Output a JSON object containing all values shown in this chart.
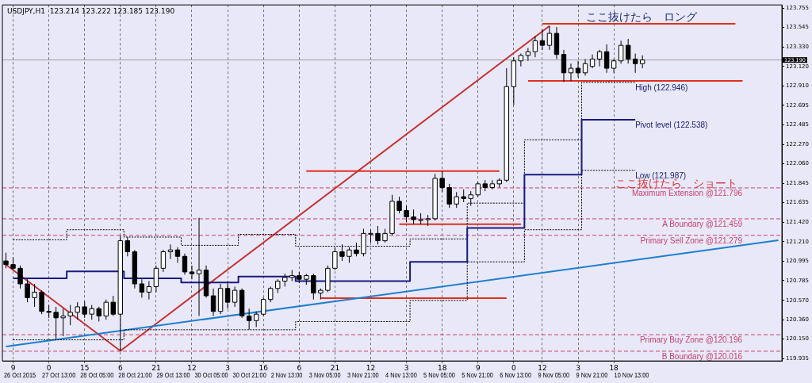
{
  "chart_data": {
    "type": "candlestick",
    "title": "USDJPY,H1  123.214 123.222 123.185 123.190",
    "categories": [
      null,
      "9",
      null,
      null,
      null,
      null,
      "0",
      null,
      null,
      null,
      null,
      "15",
      null,
      null,
      null,
      null,
      "6",
      null,
      null,
      null,
      null,
      "21",
      null,
      null,
      null,
      null,
      "12",
      null,
      null,
      null,
      null,
      "3",
      null,
      null,
      null,
      null,
      "16",
      null,
      null,
      null,
      null,
      "6",
      null,
      null,
      null,
      null,
      "21",
      null,
      null,
      null,
      null,
      "12",
      null,
      null,
      null,
      null,
      "3",
      null,
      null,
      null,
      null,
      "18",
      null,
      null,
      null,
      null,
      "9",
      null,
      null,
      null,
      null,
      "0",
      null,
      null,
      null,
      "12",
      null,
      null,
      null,
      null,
      "3",
      null,
      null,
      null,
      null,
      "18",
      null,
      null,
      null,
      null,
      null,
      null,
      null,
      null,
      null,
      null,
      null,
      null,
      null,
      null,
      null,
      null,
      null,
      null,
      null,
      null,
      null,
      null,
      null
    ],
    "ohlc": [
      [
        121.0,
        121.09,
        120.92,
        120.96
      ],
      [
        120.96,
        121.04,
        120.9,
        120.92
      ],
      [
        120.92,
        120.95,
        120.7,
        120.75
      ],
      [
        120.75,
        120.8,
        120.55,
        120.6
      ],
      [
        120.6,
        120.75,
        120.5,
        120.66
      ],
      [
        120.66,
        120.68,
        120.42,
        120.45
      ],
      [
        120.45,
        120.52,
        120.38,
        120.44
      ],
      [
        120.44,
        120.5,
        120.15,
        120.38
      ],
      [
        120.38,
        120.48,
        120.18,
        120.4
      ],
      [
        120.4,
        120.52,
        120.3,
        120.44
      ],
      [
        120.44,
        120.55,
        120.36,
        120.5
      ],
      [
        120.5,
        120.56,
        120.38,
        120.42
      ],
      [
        120.42,
        120.52,
        120.36,
        120.48
      ],
      [
        120.48,
        120.5,
        120.34,
        120.4
      ],
      [
        120.4,
        120.58,
        120.36,
        120.55
      ],
      [
        120.55,
        120.62,
        120.4,
        120.42
      ],
      [
        120.42,
        121.28,
        120.02,
        121.22
      ],
      [
        121.22,
        121.26,
        121.05,
        121.1
      ],
      [
        121.1,
        121.12,
        120.7,
        120.75
      ],
      [
        120.75,
        120.8,
        120.6,
        120.66
      ],
      [
        120.66,
        120.78,
        120.58,
        120.72
      ],
      [
        120.72,
        120.95,
        120.66,
        120.92
      ],
      [
        120.92,
        121.12,
        120.88,
        121.1
      ],
      [
        121.1,
        121.18,
        121.02,
        121.12
      ],
      [
        121.12,
        121.15,
        120.98,
        121.05
      ],
      [
        121.05,
        121.08,
        120.85,
        120.88
      ],
      [
        120.88,
        120.95,
        120.8,
        120.86
      ],
      [
        120.86,
        121.47,
        120.4,
        120.9
      ],
      [
        120.9,
        120.95,
        120.6,
        120.62
      ],
      [
        120.62,
        120.7,
        120.4,
        120.45
      ],
      [
        120.45,
        120.75,
        120.42,
        120.7
      ],
      [
        120.7,
        120.78,
        120.48,
        120.55
      ],
      [
        120.55,
        120.72,
        120.5,
        120.68
      ],
      [
        120.68,
        120.7,
        120.38,
        120.4
      ],
      [
        120.4,
        120.48,
        120.25,
        120.35
      ],
      [
        120.35,
        120.45,
        120.28,
        120.42
      ],
      [
        120.42,
        120.6,
        120.4,
        120.58
      ],
      [
        120.58,
        120.72,
        120.55,
        120.7
      ],
      [
        120.7,
        120.8,
        120.65,
        120.78
      ],
      [
        120.78,
        120.86,
        120.72,
        120.82
      ],
      [
        120.82,
        120.9,
        120.78,
        120.84
      ],
      [
        120.84,
        120.88,
        120.76,
        120.8
      ],
      [
        120.8,
        120.86,
        120.74,
        120.84
      ],
      [
        120.84,
        120.86,
        120.58,
        120.65
      ],
      [
        120.65,
        120.7,
        120.58,
        120.68
      ],
      [
        120.68,
        120.95,
        120.66,
        120.92
      ],
      [
        120.92,
        121.15,
        120.9,
        121.1
      ],
      [
        121.1,
        121.18,
        121.0,
        121.05
      ],
      [
        121.05,
        121.15,
        120.98,
        121.12
      ],
      [
        121.12,
        121.2,
        121.05,
        121.08
      ],
      [
        121.08,
        121.35,
        121.05,
        121.3
      ],
      [
        121.3,
        121.34,
        121.2,
        121.3
      ],
      [
        121.3,
        121.38,
        121.18,
        121.22
      ],
      [
        121.22,
        121.35,
        121.2,
        121.3
      ],
      [
        121.3,
        121.72,
        121.28,
        121.65
      ],
      [
        121.65,
        121.7,
        121.52,
        121.55
      ],
      [
        121.55,
        121.6,
        121.42,
        121.48
      ],
      [
        121.48,
        121.56,
        121.4,
        121.45
      ],
      [
        121.45,
        121.52,
        121.4,
        121.45
      ],
      [
        121.45,
        121.5,
        121.38,
        121.46
      ],
      [
        121.46,
        121.95,
        121.44,
        121.9
      ],
      [
        121.9,
        121.98,
        121.75,
        121.8
      ],
      [
        121.8,
        121.84,
        121.58,
        121.62
      ],
      [
        121.62,
        121.75,
        121.58,
        121.7
      ],
      [
        121.7,
        121.78,
        121.64,
        121.68
      ],
      [
        121.68,
        121.76,
        121.6,
        121.72
      ],
      [
        121.72,
        121.86,
        121.7,
        121.84
      ],
      [
        121.84,
        121.88,
        121.76,
        121.8
      ],
      [
        121.8,
        121.88,
        121.78,
        121.84
      ],
      [
        121.84,
        121.9,
        121.8,
        121.88
      ],
      [
        121.88,
        123.1,
        121.86,
        122.9
      ],
      [
        122.9,
        123.22,
        122.7,
        123.18
      ],
      [
        123.18,
        123.26,
        123.12,
        123.24
      ],
      [
        123.24,
        123.32,
        123.18,
        123.28
      ],
      [
        123.28,
        123.45,
        123.22,
        123.4
      ],
      [
        123.4,
        123.52,
        123.3,
        123.35
      ],
      [
        123.35,
        123.56,
        123.3,
        123.48
      ],
      [
        123.48,
        123.55,
        123.2,
        123.25
      ],
      [
        123.25,
        123.3,
        122.95,
        123.05
      ],
      [
        123.05,
        123.15,
        122.96,
        123.1
      ],
      [
        123.1,
        123.18,
        123.0,
        123.05
      ],
      [
        123.05,
        123.2,
        123.02,
        123.15
      ],
      [
        123.12,
        123.25,
        123.1,
        123.2
      ],
      [
        123.2,
        123.3,
        123.12,
        123.28
      ],
      [
        123.28,
        123.36,
        123.05,
        123.1
      ],
      [
        123.1,
        123.2,
        123.05,
        123.18
      ],
      [
        123.18,
        123.4,
        123.15,
        123.35
      ],
      [
        123.35,
        123.42,
        123.15,
        123.2
      ],
      [
        123.2,
        123.26,
        123.05,
        123.15
      ],
      [
        123.15,
        123.24,
        123.1,
        123.19
      ],
      null,
      null,
      null,
      null,
      null,
      null,
      null,
      null,
      null,
      null,
      null,
      null,
      null,
      null,
      null,
      null,
      null,
      null,
      null
    ],
    "series": [
      {
        "type": "step",
        "name": "Pivot level (122.538)",
        "color": "#1a1a80",
        "line_style": "solid",
        "values": [
          null,
          120.81,
          120.81,
          120.81,
          120.81,
          120.81,
          120.81,
          120.81,
          120.81,
          120.885,
          120.885,
          120.885,
          120.885,
          120.885,
          120.885,
          120.885,
          120.885,
          120.81,
          120.81,
          120.81,
          120.81,
          120.81,
          120.81,
          120.81,
          120.81,
          120.765,
          120.765,
          120.765,
          120.765,
          120.765,
          120.765,
          120.765,
          120.765,
          120.83,
          120.83,
          120.83,
          120.83,
          120.83,
          120.83,
          120.83,
          120.83,
          120.78,
          120.78,
          120.78,
          120.78,
          120.78,
          120.78,
          120.78,
          120.78,
          120.78,
          120.78,
          120.78,
          120.78,
          120.78,
          120.78,
          120.78,
          120.78,
          120.99,
          120.99,
          120.99,
          120.99,
          120.99,
          120.99,
          120.99,
          120.99,
          121.36,
          121.36,
          121.36,
          121.36,
          121.36,
          121.36,
          121.36,
          121.36,
          121.94,
          121.94,
          121.94,
          121.94,
          121.94,
          121.94,
          121.94,
          121.94,
          122.538,
          122.538,
          122.538,
          122.538,
          122.538,
          122.538,
          122.538,
          122.538,
          null,
          null,
          null,
          null,
          null,
          null,
          null,
          null,
          null,
          null,
          null,
          null,
          null,
          null,
          null,
          null,
          null,
          null,
          null,
          null
        ]
      },
      {
        "type": "step",
        "name": "High (122.946)",
        "color": "#000000",
        "line_style": "dotted",
        "values": [
          null,
          121.23,
          121.23,
          121.23,
          121.23,
          121.23,
          121.23,
          121.23,
          121.23,
          121.34,
          121.34,
          121.34,
          121.34,
          121.34,
          121.34,
          121.34,
          121.34,
          121.26,
          121.26,
          121.26,
          121.26,
          121.26,
          121.26,
          121.26,
          121.26,
          121.17,
          121.17,
          121.17,
          121.17,
          121.17,
          121.17,
          121.17,
          121.17,
          121.29,
          121.29,
          121.29,
          121.29,
          121.29,
          121.29,
          121.29,
          121.29,
          121.16,
          121.16,
          121.16,
          121.16,
          121.16,
          121.16,
          121.16,
          121.16,
          121.16,
          121.16,
          121.16,
          121.16,
          121.16,
          121.16,
          121.16,
          121.16,
          121.24,
          121.24,
          121.24,
          121.24,
          121.24,
          121.24,
          121.24,
          121.24,
          121.63,
          121.63,
          121.63,
          121.63,
          121.63,
          121.63,
          121.63,
          121.63,
          122.32,
          122.32,
          122.32,
          122.32,
          122.32,
          122.32,
          122.32,
          122.32,
          122.946,
          122.946,
          122.946,
          122.946,
          122.946,
          122.946,
          122.946,
          122.946,
          null,
          null,
          null,
          null,
          null,
          null,
          null,
          null,
          null,
          null,
          null,
          null,
          null,
          null,
          null,
          null,
          null,
          null,
          null,
          null
        ]
      },
      {
        "type": "step",
        "name": "Low (121.987)",
        "color": "#000000",
        "line_style": "dotted",
        "values": [
          null,
          120.14,
          120.14,
          120.14,
          120.14,
          120.14,
          120.14,
          120.14,
          120.14,
          120.14,
          120.14,
          120.14,
          120.14,
          120.14,
          120.14,
          120.14,
          120.14,
          120.25,
          120.25,
          120.25,
          120.25,
          120.25,
          120.25,
          120.25,
          120.25,
          120.25,
          120.25,
          120.25,
          120.25,
          120.25,
          120.25,
          120.25,
          120.25,
          120.25,
          120.25,
          120.25,
          120.25,
          120.25,
          120.25,
          120.25,
          120.25,
          120.34,
          120.34,
          120.34,
          120.34,
          120.34,
          120.34,
          120.34,
          120.34,
          120.34,
          120.34,
          120.34,
          120.34,
          120.34,
          120.34,
          120.34,
          120.34,
          120.57,
          120.57,
          120.57,
          120.57,
          120.57,
          120.57,
          120.57,
          120.57,
          120.99,
          120.99,
          120.99,
          120.99,
          120.99,
          120.99,
          120.99,
          120.99,
          121.34,
          121.34,
          121.34,
          121.34,
          121.34,
          121.34,
          121.34,
          121.34,
          121.987,
          121.987,
          121.987,
          121.987,
          121.987,
          121.987,
          121.987,
          121.987,
          null,
          null,
          null,
          null,
          null,
          null,
          null,
          null,
          null,
          null,
          null,
          null,
          null,
          null,
          null,
          null,
          null,
          null,
          null,
          null
        ]
      },
      {
        "type": "line",
        "color": "#1e7fd0",
        "line_style": "solid",
        "values": [
          120.067,
          null,
          null,
          null,
          null,
          null,
          null,
          null,
          null,
          null,
          null,
          null,
          null,
          null,
          null,
          null,
          null,
          null,
          null,
          null,
          null,
          null,
          null,
          null,
          null,
          null,
          null,
          null,
          null,
          null,
          null,
          null,
          null,
          null,
          null,
          null,
          null,
          null,
          null,
          null,
          null,
          null,
          null,
          null,
          null,
          null,
          null,
          null,
          null,
          null,
          null,
          null,
          null,
          null,
          null,
          null,
          null,
          null,
          null,
          null,
          null,
          null,
          null,
          null,
          null,
          null,
          null,
          null,
          null,
          null,
          null,
          null,
          null,
          null,
          null,
          null,
          null,
          null,
          null,
          null,
          null,
          null,
          null,
          null,
          null,
          null,
          null,
          null,
          null,
          null,
          null,
          null,
          null,
          null,
          null,
          null,
          null,
          null,
          null,
          null,
          null,
          null,
          null,
          null,
          null,
          null,
          null,
          null,
          121.225
        ]
      },
      {
        "type": "line",
        "color": "#c83030",
        "line_style": "solid",
        "values": [
          120.96,
          null,
          null,
          null,
          null,
          null,
          null,
          null,
          null,
          null,
          null,
          null,
          null,
          null,
          null,
          null,
          120.02,
          null,
          null,
          null,
          null,
          null,
          null,
          null,
          null,
          null,
          null,
          null,
          null,
          null,
          null,
          null,
          null,
          null,
          null,
          null,
          null,
          null,
          null,
          null,
          null,
          null,
          null,
          null,
          null,
          null,
          null,
          null,
          null,
          null,
          null,
          null,
          null,
          null,
          null,
          null,
          null,
          null,
          null,
          null,
          null,
          null,
          null,
          null,
          null,
          null,
          null,
          null,
          null,
          null,
          null,
          null,
          null,
          null,
          null,
          null,
          123.56,
          null,
          null,
          null,
          null,
          null,
          null,
          null,
          null,
          null,
          null,
          null,
          null,
          null,
          null,
          null,
          null,
          null,
          null,
          null,
          null,
          null,
          null,
          null,
          null,
          null,
          null,
          null,
          null,
          null,
          null,
          null,
          null
        ]
      },
      {
        "type": "line",
        "color": "#e03020",
        "line_style": "solid",
        "values": [
          null,
          null,
          null,
          null,
          null,
          null,
          null,
          null,
          null,
          null,
          null,
          null,
          null,
          null,
          null,
          null,
          null,
          null,
          null,
          null,
          null,
          null,
          null,
          null,
          null,
          null,
          null,
          null,
          null,
          null,
          null,
          null,
          null,
          null,
          null,
          null,
          null,
          null,
          null,
          null,
          null,
          null,
          null,
          null,
          null,
          null,
          null,
          null,
          null,
          null,
          null,
          null,
          null,
          null,
          null,
          null,
          null,
          null,
          null,
          null,
          null,
          null,
          null,
          null,
          null,
          null,
          null,
          null,
          null,
          null,
          null,
          null,
          null,
          null,
          null,
          123.585,
          null,
          null,
          null,
          null,
          null,
          null,
          null,
          null,
          null,
          null,
          null,
          null,
          null,
          null,
          null,
          null,
          null,
          null,
          null,
          null,
          null,
          null,
          null,
          null,
          null,
          null,
          123.585,
          null,
          null,
          null,
          null,
          null,
          null
        ]
      },
      {
        "type": "line",
        "color": "#e03020",
        "line_style": "solid",
        "values": [
          null,
          null,
          null,
          null,
          null,
          null,
          null,
          null,
          null,
          null,
          null,
          null,
          null,
          null,
          null,
          null,
          null,
          null,
          null,
          null,
          null,
          null,
          null,
          null,
          null,
          null,
          null,
          null,
          null,
          null,
          null,
          null,
          null,
          null,
          null,
          null,
          null,
          null,
          null,
          null,
          null,
          null,
          null,
          null,
          null,
          null,
          null,
          null,
          null,
          null,
          null,
          null,
          null,
          null,
          null,
          null,
          null,
          null,
          null,
          null,
          null,
          null,
          null,
          null,
          null,
          null,
          null,
          null,
          null,
          null,
          null,
          null,
          null,
          122.963,
          null,
          null,
          null,
          null,
          null,
          null,
          null,
          null,
          null,
          null,
          null,
          null,
          null,
          null,
          null,
          null,
          null,
          null,
          null,
          null,
          null,
          null,
          null,
          null,
          null,
          null,
          null,
          null,
          null,
          122.963,
          null,
          null,
          null,
          null,
          null
        ]
      },
      {
        "type": "line",
        "color": "#e03020",
        "line_style": "solid",
        "values": [
          null,
          null,
          null,
          null,
          null,
          null,
          null,
          null,
          null,
          null,
          null,
          null,
          null,
          null,
          null,
          null,
          null,
          null,
          null,
          null,
          null,
          null,
          null,
          null,
          null,
          null,
          null,
          null,
          null,
          null,
          null,
          null,
          null,
          null,
          null,
          null,
          null,
          null,
          null,
          null,
          null,
          null,
          121.98,
          null,
          null,
          null,
          null,
          null,
          null,
          null,
          null,
          null,
          null,
          null,
          null,
          null,
          null,
          null,
          null,
          null,
          null,
          null,
          null,
          null,
          null,
          null,
          null,
          null,
          null,
          121.98,
          null,
          null,
          null,
          null,
          null,
          null,
          null,
          null,
          null,
          null,
          null,
          null,
          null,
          null,
          null,
          null,
          null,
          null,
          null,
          null,
          null,
          null,
          null,
          null,
          null,
          null,
          null,
          null,
          null,
          null,
          null,
          null,
          null,
          null,
          null,
          null,
          null,
          null,
          null
        ]
      },
      {
        "type": "line",
        "color": "#e03020",
        "line_style": "solid",
        "values": [
          null,
          null,
          null,
          null,
          null,
          null,
          null,
          null,
          null,
          null,
          null,
          null,
          null,
          null,
          null,
          null,
          null,
          null,
          null,
          null,
          null,
          null,
          null,
          null,
          null,
          null,
          null,
          null,
          null,
          null,
          null,
          null,
          null,
          null,
          null,
          null,
          null,
          null,
          null,
          null,
          null,
          null,
          null,
          null,
          null,
          null,
          null,
          null,
          null,
          null,
          null,
          null,
          null,
          null,
          null,
          121.4,
          null,
          null,
          null,
          null,
          null,
          null,
          null,
          null,
          null,
          null,
          null,
          null,
          null,
          null,
          null,
          null,
          121.4,
          null,
          null,
          null,
          null,
          null,
          null,
          null,
          null,
          null,
          null,
          null,
          null,
          null,
          null,
          null,
          null,
          null,
          null,
          null,
          null,
          null,
          null,
          null,
          null,
          null,
          null,
          null,
          null,
          null,
          null,
          null,
          null,
          null,
          null,
          null,
          null
        ]
      },
      {
        "type": "line",
        "color": "#e03020",
        "line_style": "solid",
        "values": [
          null,
          null,
          null,
          null,
          null,
          null,
          null,
          null,
          null,
          null,
          null,
          null,
          null,
          null,
          null,
          null,
          null,
          null,
          null,
          null,
          null,
          null,
          null,
          null,
          null,
          null,
          null,
          null,
          null,
          null,
          null,
          null,
          null,
          null,
          null,
          null,
          null,
          null,
          null,
          null,
          null,
          null,
          null,
          null,
          120.595,
          null,
          null,
          null,
          null,
          null,
          null,
          null,
          null,
          null,
          null,
          null,
          null,
          null,
          null,
          null,
          null,
          null,
          null,
          null,
          null,
          null,
          null,
          null,
          null,
          null,
          120.595,
          null,
          null,
          null,
          null,
          null,
          null,
          null,
          null,
          null,
          null,
          null,
          null,
          null,
          null,
          null,
          null,
          null,
          null,
          null,
          null,
          null,
          null,
          null,
          null,
          null,
          null,
          null,
          null,
          null,
          null,
          null,
          null,
          null,
          null,
          null,
          null,
          null,
          null
        ]
      }
    ],
    "ylim": [
      119.91,
      123.79
    ],
    "yticks": [
      119.935,
      {
        "value": 120.15,
        "label": "120.150"
      },
      {
        "value": 120.36,
        "label": "120.360"
      },
      {
        "value": 120.57,
        "label": "120.570"
      },
      120.785,
      120.995,
      {
        "value": 121.21,
        "label": "121.210"
      },
      {
        "value": 121.42,
        "label": "121.420"
      },
      121.635,
      121.845,
      {
        "value": 122.06,
        "label": "122.060"
      },
      {
        "value": 122.27,
        "label": "122.270"
      },
      122.485,
      122.695,
      {
        "value": 122.91,
        "label": "122.910"
      },
      {
        "value": 123.12,
        "label": "123.120"
      },
      {
        "value": 123.33,
        "label": "123.330"
      },
      123.545,
      123.755
    ],
    "grid": "x",
    "legend": false,
    "ref_lines": [
      {
        "axis": "y",
        "value": 121.796,
        "label": "Maximum Extension @121.796",
        "color": "#c8406e",
        "line_style": "dashed"
      },
      {
        "axis": "y",
        "value": 121.459,
        "label": "A Boundary @121.459",
        "color": "#c8406e",
        "line_style": "dashed"
      },
      {
        "axis": "y",
        "value": 121.279,
        "label": "Primary Sell Zone @121.279",
        "color": "#c8406e",
        "line_style": "dashed"
      },
      {
        "axis": "y",
        "value": 120.196,
        "label": "Primary Buy Zone @120.196",
        "color": "#c8406e",
        "line_style": "dashed"
      },
      {
        "axis": "y",
        "value": 120.016,
        "label": "B Boundary @120.016",
        "color": "#c8406e",
        "line_style": "dashed"
      },
      {
        "axis": "y",
        "value": 123.19,
        "label": "123.190",
        "color": "#a0a0a0",
        "line_style": "solid"
      }
    ],
    "annotations": [
      "ここ抜けたら　ロング",
      "ここ抜けたら　ショート",
      "26 Oct 2015",
      "27 Oct 13:00",
      "28 Oct 05:00",
      "28 Oct 21:00",
      "29 Oct 13:00",
      "30 Oct 05:00",
      "30 Oct 21:00",
      "2 Nov 13:00",
      "3 Nov 05:00",
      "3 Nov 21:00",
      "4 Nov 13:00",
      "5 Nov 05:00",
      "5 Nov 21:00",
      "6 Nov 13:00",
      "9 Nov 05:00",
      "9 Nov 21:00",
      "10 Nov 13:00"
    ]
  }
}
